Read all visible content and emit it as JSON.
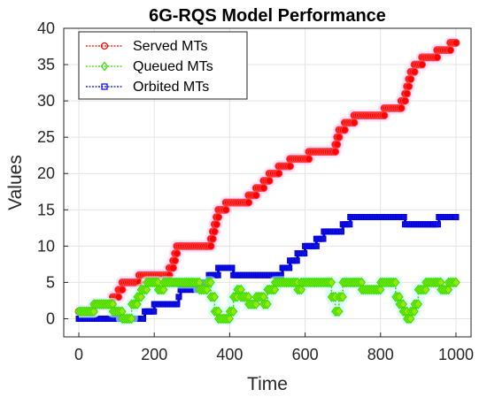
{
  "chart_data": {
    "type": "line",
    "title": "6G-RQS Model Performance",
    "xlabel": "Time",
    "ylabel": "Values",
    "xlim": [
      -40,
      1040
    ],
    "ylim": [
      -2.5,
      40
    ],
    "xticks": [
      0,
      200,
      400,
      600,
      800,
      1000
    ],
    "yticks": [
      0,
      5,
      10,
      15,
      20,
      25,
      30,
      35,
      40
    ],
    "grid": true,
    "legend_position": "top-left",
    "series": [
      {
        "name": "Served MTs",
        "color": "#ff0000",
        "marker": "circle",
        "points": [
          [
            0,
            1
          ],
          [
            30,
            1
          ],
          [
            40,
            2
          ],
          [
            80,
            2
          ],
          [
            90,
            3
          ],
          [
            105,
            4
          ],
          [
            115,
            5
          ],
          [
            150,
            5
          ],
          [
            160,
            6
          ],
          [
            230,
            6
          ],
          [
            240,
            7
          ],
          [
            250,
            8
          ],
          [
            255,
            9
          ],
          [
            260,
            10
          ],
          [
            340,
            10
          ],
          [
            350,
            11
          ],
          [
            355,
            12
          ],
          [
            360,
            13
          ],
          [
            365,
            14
          ],
          [
            370,
            15
          ],
          [
            385,
            15
          ],
          [
            390,
            16
          ],
          [
            440,
            16
          ],
          [
            450,
            17
          ],
          [
            470,
            18
          ],
          [
            490,
            19
          ],
          [
            505,
            20
          ],
          [
            530,
            21
          ],
          [
            560,
            22
          ],
          [
            600,
            22
          ],
          [
            610,
            23
          ],
          [
            670,
            23
          ],
          [
            680,
            24
          ],
          [
            685,
            25
          ],
          [
            690,
            26
          ],
          [
            705,
            27
          ],
          [
            730,
            28
          ],
          [
            800,
            28
          ],
          [
            810,
            29
          ],
          [
            850,
            29
          ],
          [
            855,
            30
          ],
          [
            865,
            31
          ],
          [
            870,
            32
          ],
          [
            875,
            33
          ],
          [
            880,
            34
          ],
          [
            890,
            35
          ],
          [
            910,
            36
          ],
          [
            940,
            36
          ],
          [
            950,
            37
          ],
          [
            985,
            38
          ],
          [
            1000,
            38
          ]
        ]
      },
      {
        "name": "Queued MTs",
        "color": "#33dd00",
        "marker": "diamond",
        "points": [
          [
            0,
            1
          ],
          [
            30,
            1
          ],
          [
            40,
            2
          ],
          [
            80,
            2
          ],
          [
            90,
            1
          ],
          [
            105,
            1
          ],
          [
            115,
            0
          ],
          [
            130,
            0
          ],
          [
            140,
            2
          ],
          [
            155,
            3
          ],
          [
            165,
            4
          ],
          [
            180,
            5
          ],
          [
            200,
            5
          ],
          [
            210,
            4
          ],
          [
            225,
            5
          ],
          [
            300,
            5
          ],
          [
            320,
            4
          ],
          [
            340,
            5
          ],
          [
            350,
            3
          ],
          [
            360,
            1
          ],
          [
            370,
            0
          ],
          [
            390,
            0
          ],
          [
            400,
            1
          ],
          [
            410,
            3
          ],
          [
            420,
            4
          ],
          [
            430,
            3
          ],
          [
            450,
            2
          ],
          [
            470,
            3
          ],
          [
            490,
            2
          ],
          [
            500,
            4
          ],
          [
            520,
            5
          ],
          [
            570,
            5
          ],
          [
            580,
            4
          ],
          [
            590,
            5
          ],
          [
            660,
            5
          ],
          [
            670,
            3
          ],
          [
            680,
            1
          ],
          [
            690,
            3
          ],
          [
            700,
            5
          ],
          [
            730,
            5
          ],
          [
            750,
            4
          ],
          [
            790,
            4
          ],
          [
            800,
            5
          ],
          [
            830,
            5
          ],
          [
            840,
            3
          ],
          [
            850,
            2
          ],
          [
            860,
            1
          ],
          [
            870,
            0
          ],
          [
            880,
            1
          ],
          [
            890,
            2
          ],
          [
            900,
            4
          ],
          [
            920,
            5
          ],
          [
            950,
            5
          ],
          [
            960,
            4
          ],
          [
            980,
            5
          ],
          [
            1000,
            5
          ]
        ]
      },
      {
        "name": "Orbited MTs",
        "color": "#0000dd",
        "marker": "square",
        "points": [
          [
            0,
            0
          ],
          [
            170,
            0
          ],
          [
            175,
            1
          ],
          [
            200,
            2
          ],
          [
            260,
            2
          ],
          [
            265,
            3
          ],
          [
            270,
            4
          ],
          [
            320,
            4
          ],
          [
            330,
            5
          ],
          [
            345,
            6
          ],
          [
            370,
            7
          ],
          [
            400,
            7
          ],
          [
            410,
            6
          ],
          [
            530,
            6
          ],
          [
            540,
            7
          ],
          [
            560,
            8
          ],
          [
            580,
            9
          ],
          [
            600,
            10
          ],
          [
            630,
            11
          ],
          [
            650,
            12
          ],
          [
            690,
            12
          ],
          [
            700,
            13
          ],
          [
            720,
            14
          ],
          [
            850,
            14
          ],
          [
            865,
            13
          ],
          [
            940,
            13
          ],
          [
            955,
            14
          ],
          [
            1000,
            14
          ]
        ]
      }
    ]
  }
}
